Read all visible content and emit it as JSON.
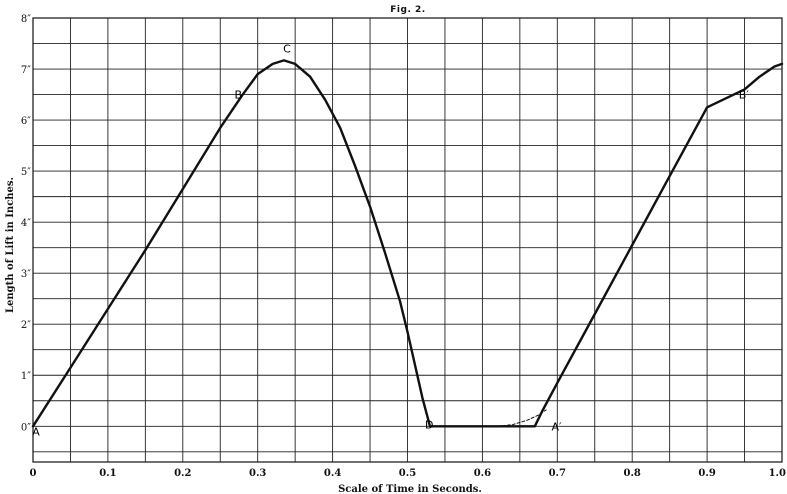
{
  "chart_data": {
    "type": "line",
    "title": "Fig. 2.",
    "xlabel": "Scale of Time in Seconds.",
    "ylabel": "Length of Lift in Inches.",
    "xlim": [
      0,
      1.0
    ],
    "ylim": [
      -0.7,
      8
    ],
    "grid": true,
    "x_tick_labels": [
      "0",
      "0.1",
      "0.2",
      "0.3",
      "0.4",
      "0.5",
      "0.6",
      "0.7",
      "0.8",
      "0.9",
      "1.0"
    ],
    "x_ticks": [
      0,
      0.1,
      0.2,
      0.3,
      0.4,
      0.5,
      0.6,
      0.7,
      0.8,
      0.9,
      1.0
    ],
    "y_tick_labels": [
      "0″",
      "1″",
      "2″",
      "3″",
      "4″",
      "5″",
      "6″",
      "7″",
      "8″"
    ],
    "y_ticks": [
      0,
      1,
      2,
      3,
      4,
      5,
      6,
      7,
      8
    ],
    "series": [
      {
        "style": "solid",
        "x": [
          0,
          0.05,
          0.1,
          0.15,
          0.2,
          0.25,
          0.28,
          0.3,
          0.32,
          0.335,
          0.35,
          0.37,
          0.39,
          0.41,
          0.43,
          0.45,
          0.47,
          0.49,
          0.5,
          0.51,
          0.52,
          0.53,
          0.55,
          0.6,
          0.65,
          0.67,
          0.68,
          0.7,
          0.75,
          0.8,
          0.85,
          0.9,
          0.95,
          0.97,
          0.99,
          1.0
        ],
        "y": [
          0,
          1.15,
          2.3,
          3.45,
          4.65,
          5.85,
          6.5,
          6.9,
          7.1,
          7.17,
          7.1,
          6.85,
          6.4,
          5.85,
          5.1,
          4.3,
          3.4,
          2.45,
          1.85,
          1.2,
          0.55,
          0,
          0,
          0,
          0,
          0,
          0.3,
          0.85,
          2.2,
          3.55,
          4.9,
          6.25,
          6.6,
          6.85,
          7.05,
          7.1
        ]
      },
      {
        "style": "dashed",
        "x": [
          0.62,
          0.64,
          0.66,
          0.675,
          0.685
        ],
        "y": [
          0,
          0.03,
          0.12,
          0.22,
          0.32
        ]
      }
    ],
    "annotations": [
      {
        "text": "A",
        "x": 0.0,
        "y": -0.1
      },
      {
        "text": "B",
        "x": 0.27,
        "y": 6.5
      },
      {
        "text": "C",
        "x": 0.335,
        "y": 7.4
      },
      {
        "text": "D",
        "x": 0.525,
        "y": 0.03
      },
      {
        "text": "A′",
        "x": 0.695,
        "y": 0.0
      },
      {
        "text": "B′",
        "x": 0.945,
        "y": 6.5
      }
    ]
  }
}
